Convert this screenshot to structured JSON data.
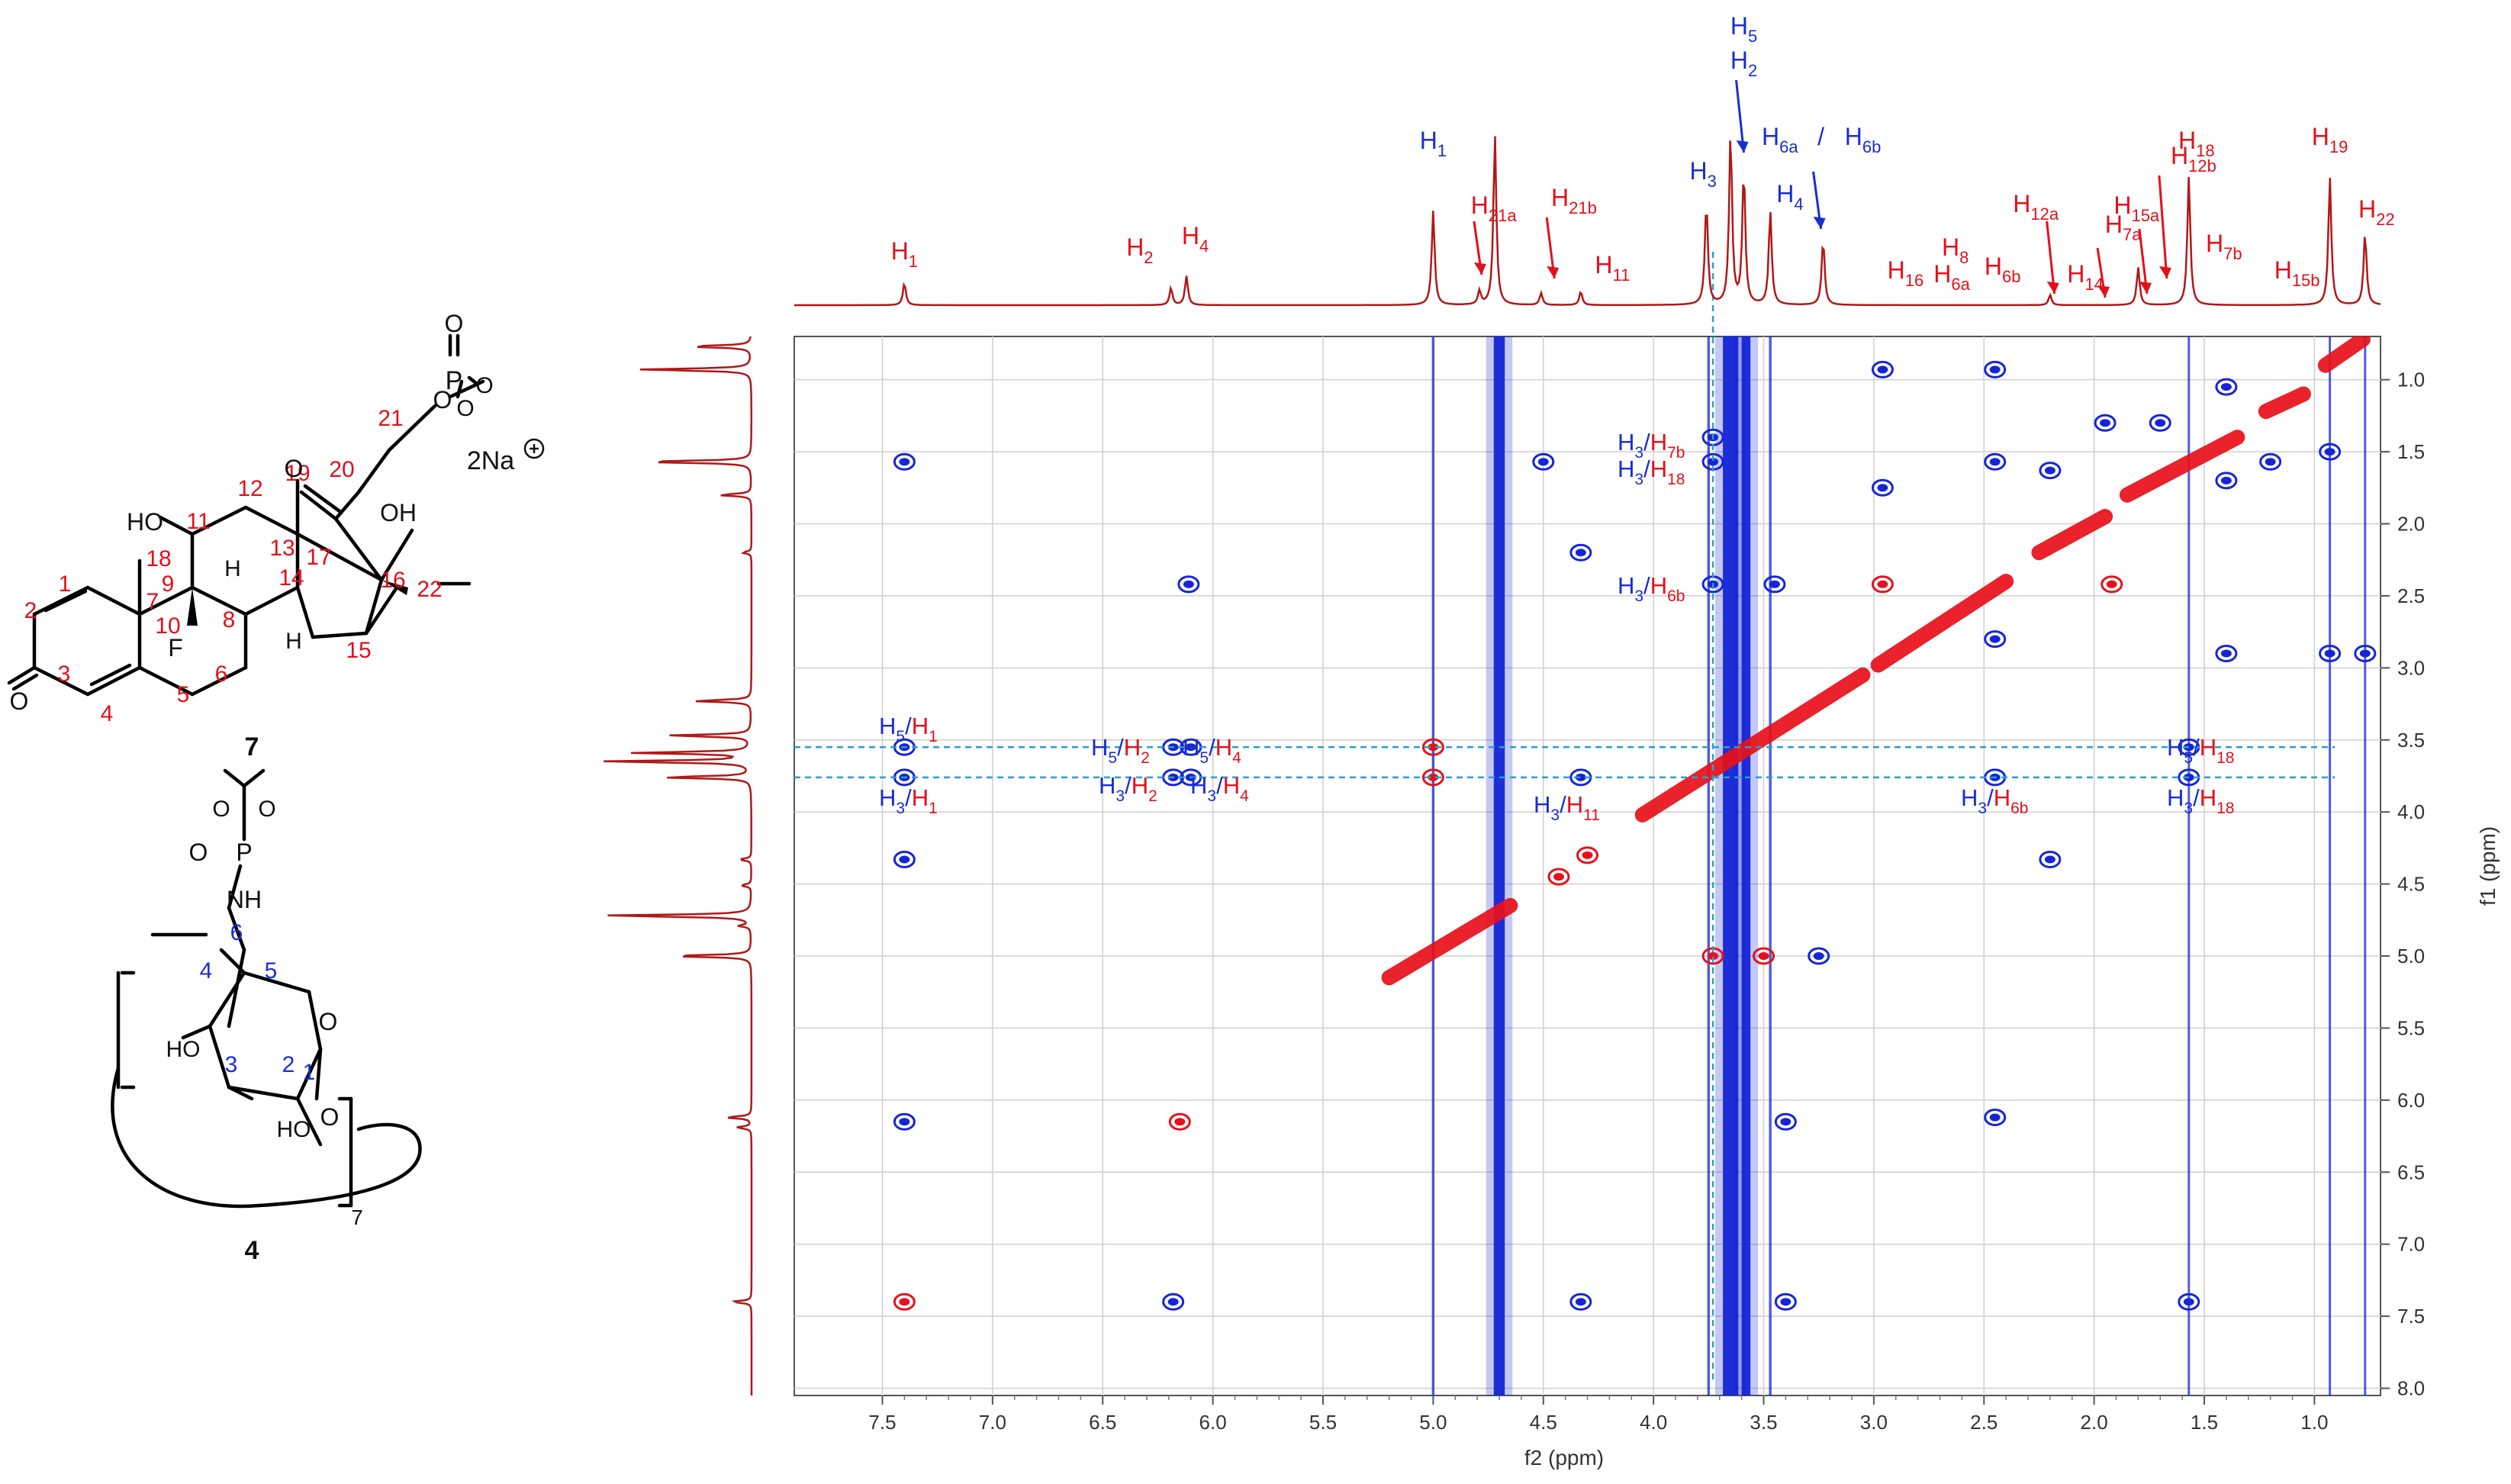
{
  "colors": {
    "positive": "#e8101a",
    "negative": "#1525d6",
    "projection": "#b01818",
    "guide": "#2aa0c8",
    "grid": "#cfcfcf",
    "blue_label": "#1a2ed0",
    "red_label": "#e3101a"
  },
  "structures": {
    "compound_7": {
      "label": "7",
      "counterion": "2Na",
      "atoms": {
        "phosphate_P": "P",
        "ho_11": "HO",
        "oh_17": "OH",
        "fluorine": "F",
        "h_8": "H",
        "h_14": "H",
        "carbonyl_O3": "O",
        "ketone_O20": "O",
        "ester_O": "O",
        "p_O_top": "O",
        "p_O_1": "O",
        "p_O_2": "O"
      },
      "numbers": [
        "1",
        "2",
        "3",
        "4",
        "5",
        "6",
        "7",
        "8",
        "9",
        "10",
        "11",
        "12",
        "13",
        "14",
        "15",
        "16",
        "17",
        "18",
        "19",
        "20",
        "21",
        "22"
      ]
    },
    "compound_4": {
      "label": "4",
      "repeat": "7",
      "atoms": {
        "P": "P",
        "O_eq": "O",
        "NH": "NH",
        "ring_O": "O",
        "glyc_O": "O",
        "HO_3": "HO",
        "HO_2": "HO",
        "OMe_1": "O",
        "OMe_2": "O"
      },
      "numbers": [
        "1",
        "2",
        "3",
        "4",
        "5",
        "6"
      ]
    }
  },
  "chart_data": {
    "type": "2D NMR (ROESY)",
    "xlabel": "f2 (ppm)",
    "ylabel": "f1 (ppm)",
    "xlim": [
      7.9,
      0.7
    ],
    "ylim": [
      0.7,
      8.05
    ],
    "x_ticks": [
      "7.5",
      "7.0",
      "6.5",
      "6.0",
      "5.5",
      "5.0",
      "4.5",
      "4.0",
      "3.5",
      "3.0",
      "2.5",
      "2.0",
      "1.5",
      "1.0"
    ],
    "x_tick_values": [
      7.5,
      7.0,
      6.5,
      6.0,
      5.5,
      5.0,
      4.5,
      4.0,
      3.5,
      3.0,
      2.5,
      2.0,
      1.5,
      1.0
    ],
    "y_ticks": [
      "1.0",
      "1.5",
      "2.0",
      "2.5",
      "3.0",
      "3.5",
      "4.0",
      "4.5",
      "5.0",
      "5.5",
      "6.0",
      "6.5",
      "7.0",
      "7.5",
      "8.0"
    ],
    "y_tick_values": [
      1.0,
      1.5,
      2.0,
      2.5,
      3.0,
      3.5,
      4.0,
      4.5,
      5.0,
      5.5,
      6.0,
      6.5,
      7.0,
      7.5,
      8.0
    ],
    "grid": true,
    "guide_lines_f1": [
      3.55,
      3.76
    ],
    "guide_line_f2": 3.73,
    "spectrum_peaks": [
      {
        "ppm": 7.4,
        "h": 0.13
      },
      {
        "ppm": 6.19,
        "h": 0.1
      },
      {
        "ppm": 6.12,
        "h": 0.17
      },
      {
        "ppm": 5.0,
        "h": 0.55
      },
      {
        "ppm": 4.79,
        "h": 0.08
      },
      {
        "ppm": 4.72,
        "h": 1.0
      },
      {
        "ppm": 4.51,
        "h": 0.07
      },
      {
        "ppm": 4.33,
        "h": 0.08
      },
      {
        "ppm": 3.76,
        "h": 0.6
      },
      {
        "ppm": 3.65,
        "h": 1.0
      },
      {
        "ppm": 3.59,
        "h": 0.78
      },
      {
        "ppm": 3.47,
        "h": 0.55
      },
      {
        "ppm": 3.23,
        "h": 0.38
      },
      {
        "ppm": 2.2,
        "h": 0.06
      },
      {
        "ppm": 1.8,
        "h": 0.22
      },
      {
        "ppm": 1.57,
        "h": 0.75
      },
      {
        "ppm": 0.93,
        "h": 0.75
      },
      {
        "ppm": 0.77,
        "h": 0.42
      }
    ],
    "top_labels": [
      {
        "main": "H",
        "sub": "1",
        "color": "red",
        "ppm": 7.4
      },
      {
        "main": "H",
        "sub": "2",
        "color": "red",
        "ppm": 6.2
      },
      {
        "main": "H",
        "sub": "4",
        "color": "red",
        "ppm": 6.08
      },
      {
        "main": "H",
        "sub": "1",
        "color": "blue",
        "ppm": 5.0
      },
      {
        "main": "H",
        "sub": "21a",
        "color": "red",
        "ppm": 4.76
      },
      {
        "main": "H",
        "sub": "21b",
        "color": "red",
        "ppm": 4.43
      },
      {
        "main": "H",
        "sub": "11",
        "color": "red",
        "ppm": 4.29
      },
      {
        "main": "H",
        "sub": "3",
        "color": "blue",
        "ppm": 3.74
      },
      {
        "main": "H",
        "sub": "5",
        "color": "blue",
        "ppm": 3.59
      },
      {
        "main": "H",
        "sub": "2",
        "color": "blue",
        "ppm": 3.59
      },
      {
        "main": "H",
        "sub": "4",
        "color": "blue",
        "ppm": 3.45
      },
      {
        "main": "H",
        "sub": "6a",
        "color": "blue",
        "ppm": 3.24
      },
      {
        "main": "H",
        "sub": "6b",
        "color": "blue",
        "ppm": 3.24
      },
      {
        "main": "H",
        "sub": "16",
        "color": "red",
        "ppm": 2.96
      },
      {
        "main": "H",
        "sub": "6a",
        "color": "red",
        "ppm": 2.75
      },
      {
        "main": "H",
        "sub": "8",
        "color": "red",
        "ppm": 2.63
      },
      {
        "main": "H",
        "sub": "6b",
        "color": "red",
        "ppm": 2.45
      },
      {
        "main": "H",
        "sub": "12a",
        "color": "red",
        "ppm": 2.23
      },
      {
        "main": "H",
        "sub": "14",
        "color": "red",
        "ppm": 2.04
      },
      {
        "main": "H",
        "sub": "7a",
        "color": "red",
        "ppm": 1.92
      },
      {
        "main": "H",
        "sub": "15a",
        "color": "red",
        "ppm": 1.79
      },
      {
        "main": "H",
        "sub": "12b",
        "color": "red",
        "ppm": 1.67
      },
      {
        "main": "H",
        "sub": "18",
        "color": "red",
        "ppm": 1.57
      },
      {
        "main": "H",
        "sub": "7b",
        "color": "red",
        "ppm": 1.48
      },
      {
        "main": "H",
        "sub": "15b",
        "color": "red",
        "ppm": 1.2
      },
      {
        "main": "H",
        "sub": "19",
        "color": "red",
        "ppm": 0.93
      },
      {
        "main": "H",
        "sub": "22",
        "color": "red",
        "ppm": 0.77
      }
    ],
    "cross_peak_labels": [
      {
        "a": "H",
        "as": "5",
        "b": "H",
        "bs": "1"
      },
      {
        "a": "H",
        "as": "3",
        "b": "H",
        "bs": "1"
      },
      {
        "a": "H",
        "as": "5",
        "b": "H",
        "bs": "2"
      },
      {
        "a": "H",
        "as": "5",
        "b": "H",
        "bs": "4"
      },
      {
        "a": "H",
        "as": "3",
        "b": "H",
        "bs": "2"
      },
      {
        "a": "H",
        "as": "3",
        "b": "H",
        "bs": "4"
      },
      {
        "a": "H",
        "as": "3",
        "b": "H",
        "bs": "11"
      },
      {
        "a": "H",
        "as": "3",
        "b": "H",
        "bs": "7b"
      },
      {
        "a": "H",
        "as": "3",
        "b": "H",
        "bs": "18"
      },
      {
        "a": "H",
        "as": "3",
        "b": "H",
        "bs": "6b"
      },
      {
        "a": "H",
        "as": "3",
        "b": "H",
        "bs": "6b"
      },
      {
        "a": "H",
        "as": "5",
        "b": "H",
        "bs": "18"
      },
      {
        "a": "H",
        "as": "3",
        "b": "H",
        "bs": "18"
      }
    ],
    "cross_peaks": [
      {
        "x": 7.4,
        "y": 1.57,
        "c": "b"
      },
      {
        "x": 7.4,
        "y": 3.55,
        "c": "b"
      },
      {
        "x": 7.4,
        "y": 3.76,
        "c": "b"
      },
      {
        "x": 7.4,
        "y": 4.33,
        "c": "b"
      },
      {
        "x": 7.4,
        "y": 6.15,
        "c": "b"
      },
      {
        "x": 7.4,
        "y": 7.4,
        "c": "r"
      },
      {
        "x": 6.18,
        "y": 3.55,
        "c": "b"
      },
      {
        "x": 6.1,
        "y": 3.55,
        "c": "b"
      },
      {
        "x": 6.18,
        "y": 3.76,
        "c": "b"
      },
      {
        "x": 6.1,
        "y": 3.76,
        "c": "b"
      },
      {
        "x": 6.11,
        "y": 2.42,
        "c": "b"
      },
      {
        "x": 6.15,
        "y": 6.15,
        "c": "r"
      },
      {
        "x": 6.18,
        "y": 7.4,
        "c": "b"
      },
      {
        "x": 4.5,
        "y": 1.57,
        "c": "b"
      },
      {
        "x": 4.33,
        "y": 2.2,
        "c": "b"
      },
      {
        "x": 4.33,
        "y": 7.4,
        "c": "b"
      },
      {
        "x": 4.43,
        "y": 4.45,
        "c": "r"
      },
      {
        "x": 4.3,
        "y": 4.3,
        "c": "r"
      },
      {
        "x": 3.45,
        "y": 2.42,
        "c": "b"
      },
      {
        "x": 3.4,
        "y": 6.15,
        "c": "b"
      },
      {
        "x": 3.4,
        "y": 7.4,
        "c": "b"
      },
      {
        "x": 3.25,
        "y": 5.0,
        "c": "b"
      },
      {
        "x": 2.96,
        "y": 0.93,
        "c": "b"
      },
      {
        "x": 2.96,
        "y": 1.75,
        "c": "b"
      },
      {
        "x": 2.96,
        "y": 2.42,
        "c": "r"
      },
      {
        "x": 2.45,
        "y": 0.93,
        "c": "b"
      },
      {
        "x": 2.45,
        "y": 1.57,
        "c": "b"
      },
      {
        "x": 2.45,
        "y": 2.8,
        "c": "b"
      },
      {
        "x": 2.45,
        "y": 6.12,
        "c": "b"
      },
      {
        "x": 2.2,
        "y": 1.63,
        "c": "b"
      },
      {
        "x": 2.2,
        "y": 4.33,
        "c": "b"
      },
      {
        "x": 1.95,
        "y": 1.3,
        "c": "b"
      },
      {
        "x": 1.92,
        "y": 2.42,
        "c": "r"
      },
      {
        "x": 1.7,
        "y": 1.3,
        "c": "b"
      },
      {
        "x": 1.4,
        "y": 1.05,
        "c": "b"
      },
      {
        "x": 1.4,
        "y": 1.7,
        "c": "b"
      },
      {
        "x": 1.4,
        "y": 2.9,
        "c": "b"
      },
      {
        "x": 1.57,
        "y": 7.4,
        "c": "b"
      },
      {
        "x": 1.2,
        "y": 1.57,
        "c": "b"
      },
      {
        "x": 0.93,
        "y": 1.5,
        "c": "b"
      },
      {
        "x": 0.93,
        "y": 2.9,
        "c": "b"
      },
      {
        "x": 0.77,
        "y": 2.9,
        "c": "b"
      },
      {
        "x": 1.57,
        "y": 3.55,
        "c": "b"
      },
      {
        "x": 1.57,
        "y": 3.76,
        "c": "b"
      },
      {
        "x": 2.45,
        "y": 3.76,
        "c": "b"
      },
      {
        "x": 3.73,
        "y": 1.57,
        "c": "b"
      },
      {
        "x": 3.73,
        "y": 2.42,
        "c": "b"
      },
      {
        "x": 3.73,
        "y": 1.4,
        "c": "b"
      },
      {
        "x": 4.33,
        "y": 3.76,
        "c": "b"
      },
      {
        "x": 5.0,
        "y": 3.55,
        "c": "r"
      },
      {
        "x": 5.0,
        "y": 3.76,
        "c": "r"
      },
      {
        "x": 3.73,
        "y": 5.0,
        "c": "r"
      },
      {
        "x": 3.5,
        "y": 5.0,
        "c": "r"
      }
    ],
    "diagonal": [
      {
        "from": [
          4.05,
          4.02
        ],
        "to": [
          3.05,
          3.05
        ]
      },
      {
        "from": [
          2.98,
          2.98
        ],
        "to": [
          2.4,
          2.4
        ]
      },
      {
        "from": [
          2.25,
          2.2
        ],
        "to": [
          1.95,
          1.95
        ]
      },
      {
        "from": [
          1.85,
          1.8
        ],
        "to": [
          1.35,
          1.4
        ]
      },
      {
        "from": [
          1.22,
          1.22
        ],
        "to": [
          1.05,
          1.1
        ]
      },
      {
        "from": [
          0.95,
          0.9
        ],
        "to": [
          0.78,
          0.72
        ]
      },
      {
        "from": [
          5.2,
          5.15
        ],
        "to": [
          4.65,
          4.65
        ]
      }
    ],
    "streaks": [
      {
        "x": 4.7,
        "w": 0.05,
        "c": "b"
      },
      {
        "x": 3.65,
        "w": 0.07,
        "c": "b"
      },
      {
        "x": 3.58,
        "w": 0.04,
        "c": "b"
      },
      {
        "x": 5.0,
        "w": 0.012,
        "c": "b"
      },
      {
        "x": 3.75,
        "w": 0.012,
        "c": "b"
      },
      {
        "x": 3.47,
        "w": 0.012,
        "c": "b"
      },
      {
        "x": 1.57,
        "w": 0.01,
        "c": "b"
      },
      {
        "x": 0.93,
        "w": 0.01,
        "c": "b"
      },
      {
        "x": 0.77,
        "w": 0.01,
        "c": "b"
      }
    ]
  }
}
